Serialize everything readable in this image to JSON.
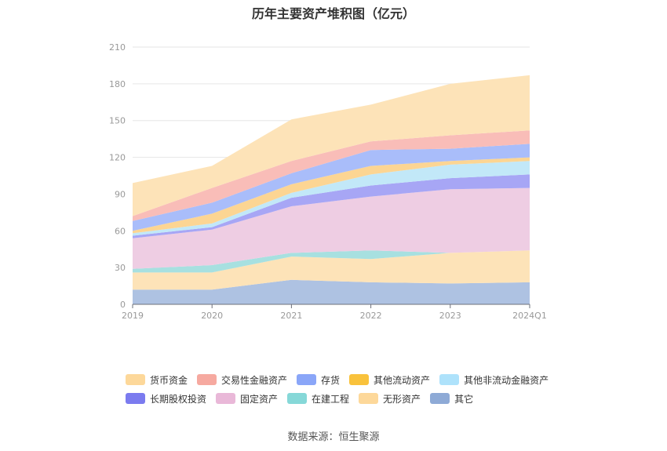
{
  "chart_data": {
    "type": "area",
    "stacked": true,
    "title": "历年主要资产堆积图（亿元）",
    "categories": [
      "2019",
      "2020",
      "2021",
      "2022",
      "2023",
      "2024Q1"
    ],
    "y_ticks": [
      "0",
      "30",
      "60",
      "90",
      "120",
      "150",
      "180",
      "210"
    ],
    "ylim": [
      0,
      210
    ],
    "series": [
      {
        "name": "其它",
        "color": "#aec2e2",
        "values": [
          12,
          12,
          20,
          18,
          17,
          18
        ]
      },
      {
        "name": "无形资产",
        "color": "#fde3b8",
        "values": [
          14,
          14,
          19,
          19,
          25,
          26
        ]
      },
      {
        "name": "在建工程",
        "color": "#a7e0e0",
        "values": [
          3,
          6,
          3,
          7,
          0,
          0
        ]
      },
      {
        "name": "固定资产",
        "color": "#eecde3",
        "values": [
          25,
          29,
          38,
          44,
          52,
          51
        ]
      },
      {
        "name": "长期股权投资",
        "color": "#a7a6f5",
        "values": [
          2,
          2,
          7,
          9,
          9,
          11
        ]
      },
      {
        "name": "其他非流动金融资产",
        "color": "#c2e8f8",
        "values": [
          2,
          3,
          4,
          9,
          11,
          11
        ]
      },
      {
        "name": "其他流动资产",
        "color": "#fcd593",
        "values": [
          2,
          8,
          7,
          7,
          3,
          3
        ]
      },
      {
        "name": "存货",
        "color": "#a9bdfa",
        "values": [
          8,
          9,
          9,
          13,
          10,
          11
        ]
      },
      {
        "name": "交易性金融资产",
        "color": "#f9bdb8",
        "values": [
          4,
          12,
          10,
          7,
          11,
          11
        ]
      },
      {
        "name": "货币资金",
        "color": "#fde3b8",
        "values": [
          27,
          18,
          34,
          30,
          42,
          45
        ]
      }
    ],
    "legend": [
      {
        "name": "货币资金",
        "color": "#fdd89a"
      },
      {
        "name": "交易性金融资产",
        "color": "#f6a9a0"
      },
      {
        "name": "存货",
        "color": "#8aa6f8"
      },
      {
        "name": "其他流动资产",
        "color": "#f9c23c"
      },
      {
        "name": "其他非流动金融资产",
        "color": "#aee2fb"
      },
      {
        "name": "长期股权投资",
        "color": "#7b7bef"
      },
      {
        "name": "固定资产",
        "color": "#e9b8d8"
      },
      {
        "name": "在建工程",
        "color": "#86d8d8"
      },
      {
        "name": "无形资产",
        "color": "#fdd89a"
      },
      {
        "name": "其它",
        "color": "#8eaad6"
      }
    ]
  },
  "source": "数据来源：恒生聚源"
}
